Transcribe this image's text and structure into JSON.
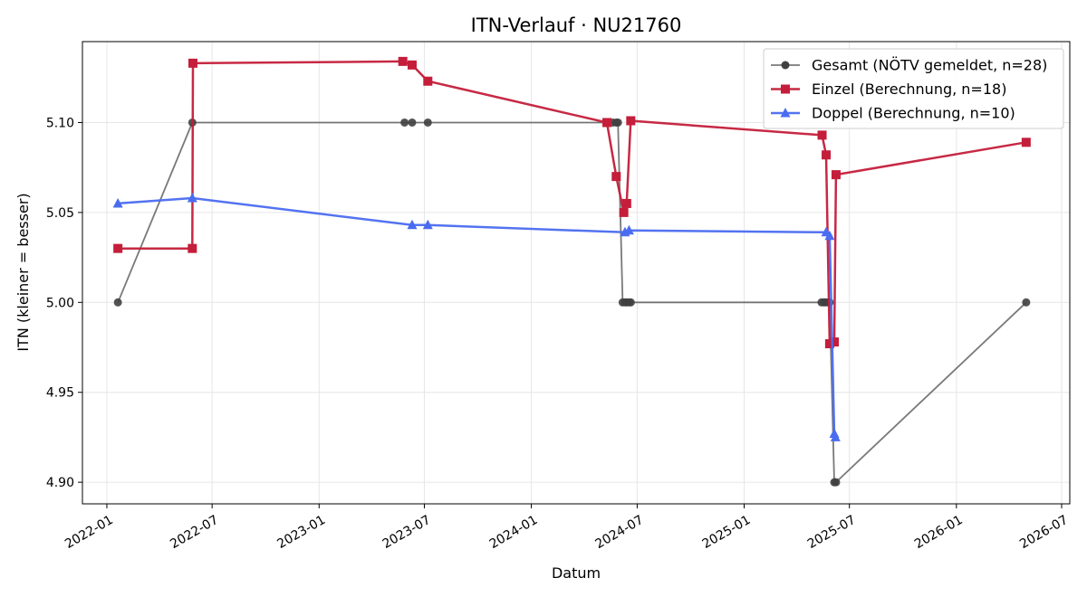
{
  "chart_data": {
    "type": "line",
    "title": "ITN-Verlauf · NU21760",
    "xlabel": "Datum",
    "ylabel": "ITN  (kleiner = besser)",
    "x_type": "date",
    "xlim": [
      "2021-11-20",
      "2026-07-15"
    ],
    "ylim": [
      4.888,
      5.145
    ],
    "grid": true,
    "legend_position": "top-right",
    "x_ticks": [
      "2022-01",
      "2022-07",
      "2023-01",
      "2023-07",
      "2024-01",
      "2024-07",
      "2025-01",
      "2025-07",
      "2026-01",
      "2026-07"
    ],
    "y_ticks": [
      4.9,
      4.95,
      5.0,
      5.05,
      5.1
    ],
    "y_tick_labels": [
      "4.90",
      "4.95",
      "5.00",
      "5.05",
      "5.10"
    ],
    "series": [
      {
        "name": "Gesamt (NÖTV gemeldet, n=28)",
        "color": "#404040",
        "marker": "circle",
        "points": [
          [
            "2022-01-20",
            5.0
          ],
          [
            "2022-05-28",
            5.1
          ],
          [
            "2023-05-28",
            5.1
          ],
          [
            "2023-06-10",
            5.1
          ],
          [
            "2023-07-07",
            5.1
          ],
          [
            "2024-05-20",
            5.1
          ],
          [
            "2024-05-26",
            5.1
          ],
          [
            "2024-05-29",
            5.1
          ],
          [
            "2024-06-06",
            5.0
          ],
          [
            "2024-06-10",
            5.0
          ],
          [
            "2024-06-13",
            5.0
          ],
          [
            "2024-06-17",
            5.0
          ],
          [
            "2024-06-20",
            5.0
          ],
          [
            "2025-05-14",
            5.0
          ],
          [
            "2025-05-18",
            5.0
          ],
          [
            "2025-05-21",
            5.0
          ],
          [
            "2025-05-25",
            5.0
          ],
          [
            "2025-05-28",
            5.0
          ],
          [
            "2025-06-05",
            4.9
          ],
          [
            "2025-06-08",
            4.9
          ],
          [
            "2026-05-01",
            5.0
          ]
        ]
      },
      {
        "name": "Einzel (Berechnung, n=18)",
        "color": "#c41e3a",
        "marker": "square",
        "points": [
          [
            "2022-01-20",
            5.03
          ],
          [
            "2022-05-28",
            5.03
          ],
          [
            "2022-05-29",
            5.133
          ],
          [
            "2023-05-25",
            5.134
          ],
          [
            "2023-06-10",
            5.132
          ],
          [
            "2023-07-07",
            5.123
          ],
          [
            "2024-05-10",
            5.1
          ],
          [
            "2024-05-26",
            5.07
          ],
          [
            "2024-06-08",
            5.05
          ],
          [
            "2024-06-13",
            5.055
          ],
          [
            "2024-06-20",
            5.101
          ],
          [
            "2025-05-15",
            5.093
          ],
          [
            "2025-05-22",
            5.082
          ],
          [
            "2025-05-28",
            4.977
          ],
          [
            "2025-06-05",
            4.978
          ],
          [
            "2025-06-08",
            5.071
          ],
          [
            "2026-05-01",
            5.089
          ]
        ]
      },
      {
        "name": "Doppel (Berechnung, n=10)",
        "color": "#4a6cf0",
        "marker": "triangle",
        "points": [
          [
            "2022-01-20",
            5.055
          ],
          [
            "2022-05-28",
            5.058
          ],
          [
            "2023-06-10",
            5.043
          ],
          [
            "2023-07-07",
            5.043
          ],
          [
            "2024-06-10",
            5.039
          ],
          [
            "2024-06-17",
            5.04
          ],
          [
            "2025-05-22",
            5.039
          ],
          [
            "2025-05-28",
            5.037
          ],
          [
            "2025-06-05",
            4.927
          ],
          [
            "2025-06-07",
            4.925
          ]
        ]
      }
    ]
  }
}
